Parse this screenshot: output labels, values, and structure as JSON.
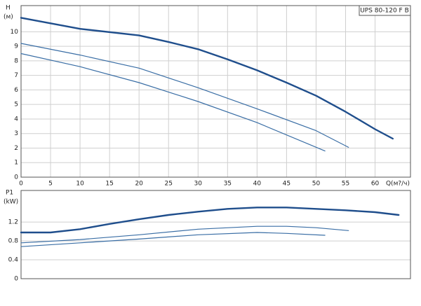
{
  "chart_data": [
    {
      "type": "line",
      "title": "UPS 80-120 F B",
      "y_label": "H",
      "y_unit": "(м)",
      "x_label": "Q(м?/ч)",
      "xlim": [
        0,
        66
      ],
      "xticks": [
        0,
        5,
        10,
        15,
        20,
        25,
        30,
        35,
        40,
        45,
        50,
        55,
        60
      ],
      "ylim": [
        0,
        11.8
      ],
      "yticks": [
        0,
        1,
        2,
        3,
        4,
        5,
        6,
        7,
        8,
        9,
        10
      ],
      "grid": true,
      "series": [
        {
          "color": "#1f4e8c",
          "x": [
            0,
            10,
            20,
            25,
            30,
            35,
            40,
            45,
            50,
            55,
            60,
            63
          ],
          "values": [
            10.96,
            10.2,
            9.75,
            9.3,
            8.8,
            8.1,
            7.35,
            6.5,
            5.6,
            4.5,
            3.3,
            2.65
          ]
        },
        {
          "color": "#3a6ea5",
          "x": [
            0,
            10,
            20,
            30,
            40,
            50,
            55.5
          ],
          "values": [
            9.2,
            8.4,
            7.5,
            6.15,
            4.7,
            3.2,
            2.05
          ]
        },
        {
          "color": "#3a6ea5",
          "x": [
            0,
            10,
            20,
            30,
            40,
            51.5
          ],
          "values": [
            8.5,
            7.6,
            6.5,
            5.2,
            3.75,
            1.8
          ]
        }
      ]
    },
    {
      "type": "line",
      "y_label": "P1",
      "y_unit": "(kW)",
      "xlim": [
        0,
        66
      ],
      "ylim": [
        0,
        1.87
      ],
      "yticks": [
        0,
        0.4,
        0.8,
        1.2
      ],
      "grid": true,
      "series": [
        {
          "color": "#1f4e8c",
          "x": [
            0,
            5,
            10,
            15,
            20,
            25,
            30,
            35,
            40,
            45,
            50,
            55,
            60,
            64
          ],
          "values": [
            0.98,
            0.98,
            1.05,
            1.16,
            1.26,
            1.35,
            1.42,
            1.48,
            1.51,
            1.51,
            1.48,
            1.45,
            1.41,
            1.35
          ]
        },
        {
          "color": "#3a6ea5",
          "x": [
            0,
            10,
            20,
            30,
            40,
            45,
            50,
            55.5
          ],
          "values": [
            0.76,
            0.83,
            0.93,
            1.05,
            1.11,
            1.11,
            1.08,
            1.02
          ]
        },
        {
          "color": "#3a6ea5",
          "x": [
            0,
            10,
            20,
            30,
            40,
            45,
            51.5
          ],
          "values": [
            0.68,
            0.76,
            0.84,
            0.93,
            0.98,
            0.96,
            0.92
          ]
        }
      ]
    }
  ]
}
